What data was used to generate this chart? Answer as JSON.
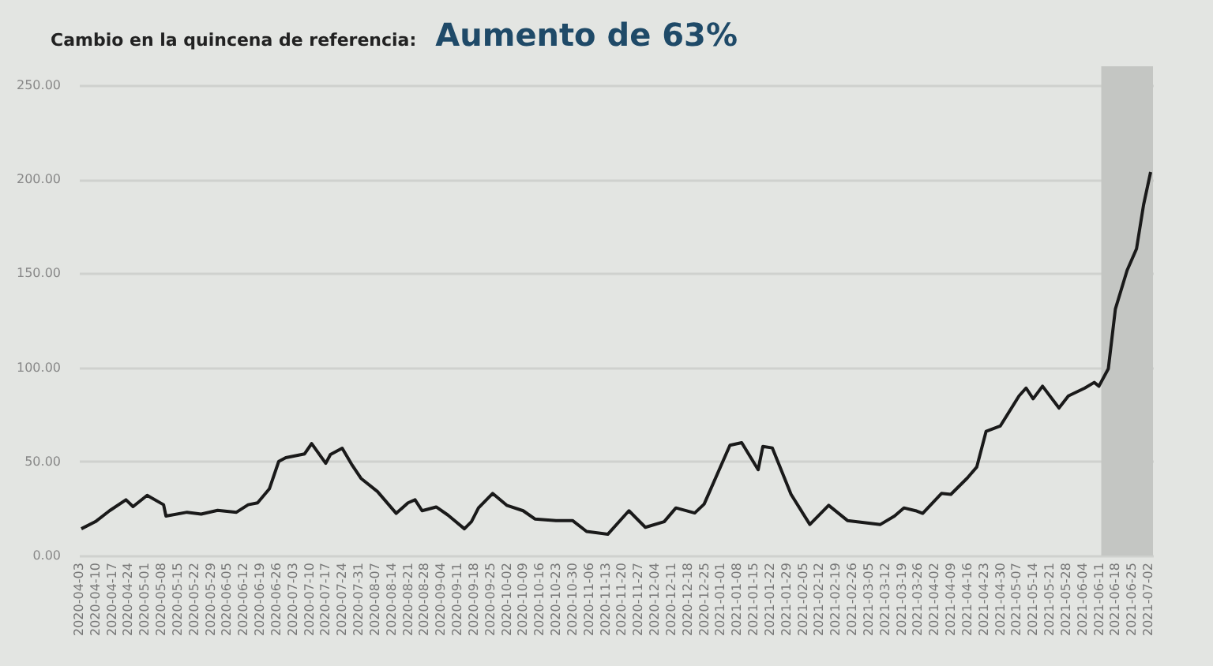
{
  "chart_data": {
    "type": "line",
    "title": "Cambio en la quincena de referencia:",
    "subtitle": "Aumento de 63%",
    "x": [
      "2020-04-04",
      "2020-04-10",
      "2020-04-16",
      "2020-04-23",
      "2020-04-26",
      "2020-05-02",
      "2020-05-09",
      "2020-05-10",
      "2020-05-19",
      "2020-05-25",
      "2020-06-01",
      "2020-06-09",
      "2020-06-14",
      "2020-06-18",
      "2020-06-23",
      "2020-06-27",
      "2020-06-30",
      "2020-07-08",
      "2020-07-11",
      "2020-07-17",
      "2020-07-19",
      "2020-07-24",
      "2020-07-28",
      "2020-08-01",
      "2020-08-08",
      "2020-08-16",
      "2020-08-21",
      "2020-08-24",
      "2020-08-27",
      "2020-09-02",
      "2020-09-07",
      "2020-09-14",
      "2020-09-17",
      "2020-09-20",
      "2020-09-26",
      "2020-10-02",
      "2020-10-09",
      "2020-10-14",
      "2020-10-23",
      "2020-10-30",
      "2020-11-05",
      "2020-11-14",
      "2020-11-23",
      "2020-11-30",
      "2020-12-08",
      "2020-12-13",
      "2020-12-21",
      "2020-12-25",
      "2021-01-05",
      "2021-01-10",
      "2021-01-17",
      "2021-01-19",
      "2021-01-23",
      "2021-01-31",
      "2021-02-08",
      "2021-02-16",
      "2021-02-24",
      "2021-03-10",
      "2021-03-16",
      "2021-03-20",
      "2021-03-25",
      "2021-03-28",
      "2021-04-05",
      "2021-04-09",
      "2021-04-16",
      "2021-04-20",
      "2021-04-24",
      "2021-04-30",
      "2021-05-08",
      "2021-05-11",
      "2021-05-14",
      "2021-05-18",
      "2021-05-25",
      "2021-05-29",
      "2021-06-05",
      "2021-06-09",
      "2021-06-11",
      "2021-06-15",
      "2021-06-18",
      "2021-06-23",
      "2021-06-27",
      "2021-06-30",
      "2021-07-03"
    ],
    "series": [
      {
        "color": "#1a1a1a",
        "values": [
          14.2,
          18,
          23.8,
          29.6,
          26,
          32,
          27,
          21,
          23,
          22,
          24,
          23,
          27,
          28,
          35.4,
          50,
          52,
          54,
          59.5,
          49,
          53.7,
          57,
          48.5,
          41,
          34,
          22.4,
          28,
          29.6,
          23.8,
          25.8,
          21.5,
          14.2,
          18,
          25.3,
          33,
          26.7,
          23.8,
          19.4,
          18.6,
          18.6,
          12.8,
          11.3,
          23.8,
          15,
          18,
          25.3,
          22.6,
          27.3,
          58.6,
          60,
          45.6,
          58,
          57.2,
          32.5,
          16.5,
          26.7,
          18.6,
          16.5,
          21,
          25.3,
          23.8,
          22.4,
          33,
          32.5,
          41.2,
          47,
          66,
          68.8,
          84.8,
          89,
          83.3,
          90,
          78.4,
          84.8,
          89,
          92,
          90,
          99.3,
          131,
          151.6,
          163,
          186.4,
          203.8
        ]
      }
    ],
    "xlim": [
      "2020-04-03",
      "2021-07-04"
    ],
    "xticks": [
      "2020-04-03",
      "2020-04-10",
      "2020-04-17",
      "2020-04-24",
      "2020-05-01",
      "2020-05-08",
      "2020-05-15",
      "2020-05-22",
      "2020-05-29",
      "2020-06-05",
      "2020-06-12",
      "2020-06-19",
      "2020-06-26",
      "2020-07-03",
      "2020-07-10",
      "2020-07-17",
      "2020-07-24",
      "2020-07-31",
      "2020-08-07",
      "2020-08-14",
      "2020-08-21",
      "2020-08-28",
      "2020-09-04",
      "2020-09-11",
      "2020-09-18",
      "2020-09-25",
      "2020-10-02",
      "2020-10-09",
      "2020-10-16",
      "2020-10-23",
      "2020-10-30",
      "2020-11-06",
      "2020-11-13",
      "2020-11-20",
      "2020-11-27",
      "2020-12-04",
      "2020-12-11",
      "2020-12-18",
      "2020-12-25",
      "2021-01-01",
      "2021-01-08",
      "2021-01-15",
      "2021-01-22",
      "2021-01-29",
      "2021-02-05",
      "2021-02-12",
      "2021-02-19",
      "2021-02-26",
      "2021-03-05",
      "2021-03-12",
      "2021-03-19",
      "2021-03-26",
      "2021-04-02",
      "2021-04-09",
      "2021-04-16",
      "2021-04-23",
      "2021-04-30",
      "2021-05-07",
      "2021-05-14",
      "2021-05-21",
      "2021-05-28",
      "2021-06-04",
      "2021-06-11",
      "2021-06-18",
      "2021-06-25",
      "2021-07-02"
    ],
    "ylim": [
      0,
      260
    ],
    "yticks": [
      {
        "value": 0,
        "label": "0.00"
      },
      {
        "value": 50,
        "label": "50.00"
      },
      {
        "value": 100,
        "label": "100.00"
      },
      {
        "value": 150,
        "label": "150.00"
      },
      {
        "value": 200,
        "label": "200.00"
      },
      {
        "value": 250,
        "label": "250.00"
      }
    ],
    "bands": [
      {
        "axis": "x",
        "from": "2021-06-12",
        "to": "2021-07-04",
        "color": "#c4c6c3"
      }
    ],
    "grid": "y",
    "marker": "none",
    "line_style": "solid"
  }
}
